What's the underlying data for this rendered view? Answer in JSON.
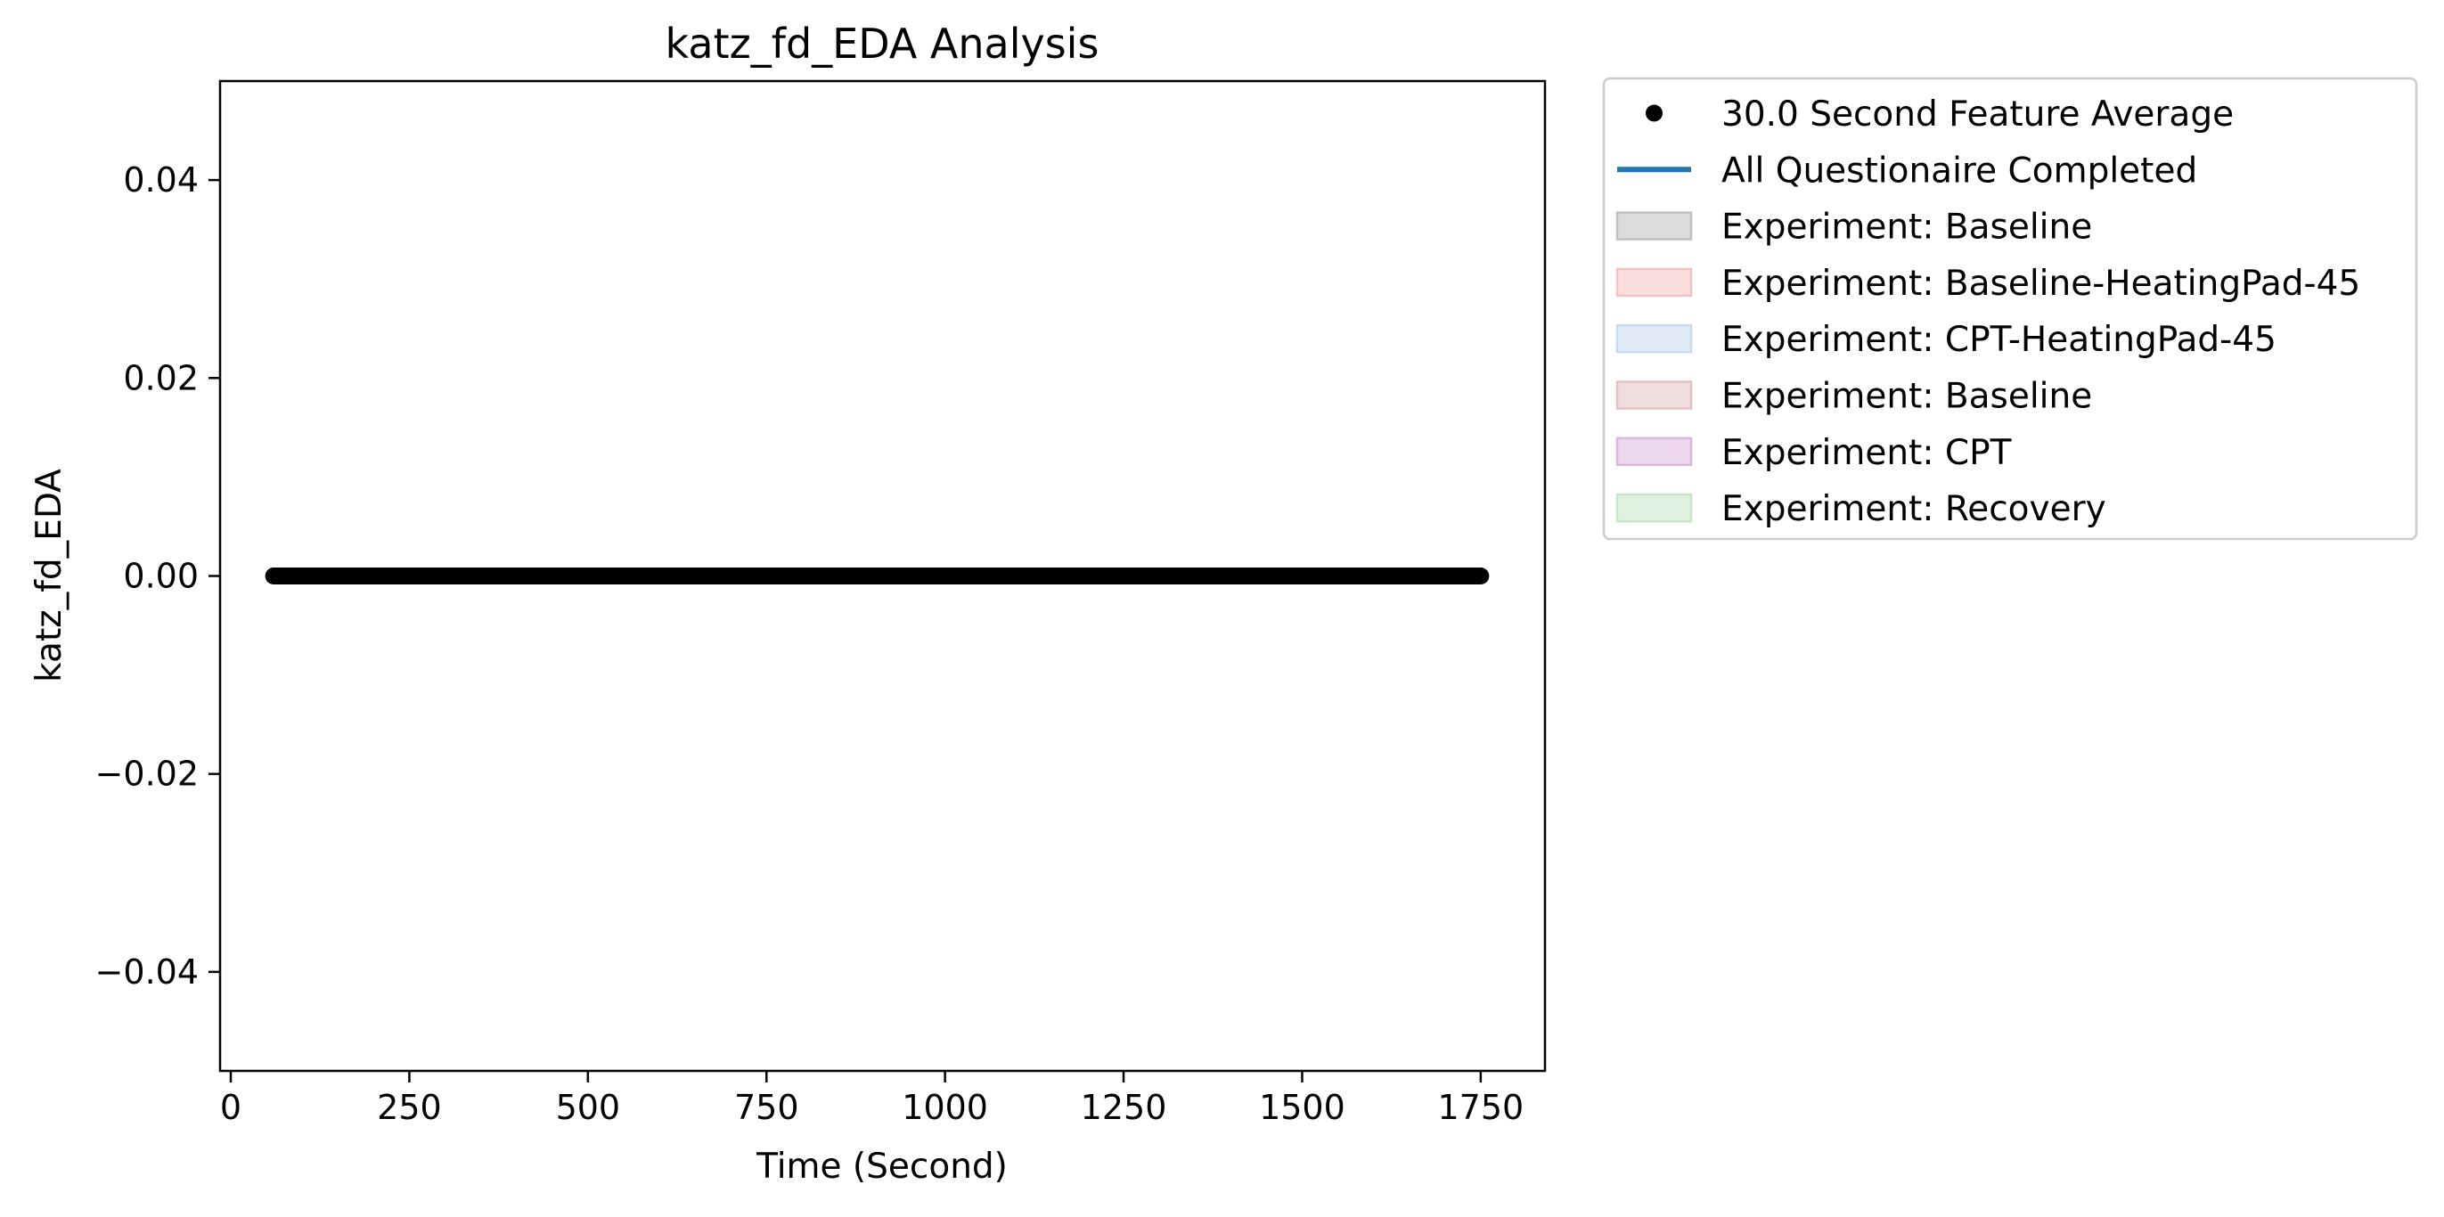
{
  "chart_data": {
    "type": "scatter",
    "title": "katz_fd_EDA Analysis",
    "xlabel": "Time (Second)",
    "ylabel": "katz_fd_EDA",
    "xlim": [
      -15,
      1840
    ],
    "ylim": [
      -0.05,
      0.05
    ],
    "x_ticks": [
      0,
      250,
      500,
      750,
      1000,
      1250,
      1500,
      1750
    ],
    "x_tick_labels": [
      "0",
      "250",
      "500",
      "750",
      "1000",
      "1250",
      "1500",
      "1750"
    ],
    "y_ticks": [
      0.04,
      0.02,
      0.0,
      -0.02,
      -0.04
    ],
    "y_tick_labels": [
      "0.04",
      "0.02",
      "0.00",
      "−0.02",
      "−0.04"
    ],
    "grid": false,
    "legend_position": "outside-right",
    "series": [
      {
        "name": "30.0 Second Feature Average",
        "kind": "points",
        "color": "#000000",
        "x_start": 60,
        "x_end": 1750,
        "x_step": 1,
        "y": 0.0
      }
    ],
    "legend": [
      {
        "label": "30.0 Second Feature Average",
        "kind": "marker",
        "color": "#000000"
      },
      {
        "label": "All Questionaire Completed",
        "kind": "line",
        "color": "#1f77b4"
      },
      {
        "label": "Experiment: Baseline",
        "kind": "patch",
        "color": "#bfbfbf"
      },
      {
        "label": "Experiment: Baseline-HeatingPad-45",
        "kind": "patch",
        "color": "#f4c2c2"
      },
      {
        "label": "Experiment: CPT-HeatingPad-45",
        "kind": "patch",
        "color": "#c6dbef"
      },
      {
        "label": "Experiment: Baseline",
        "kind": "patch",
        "color": "#e3c1c3"
      },
      {
        "label": "Experiment: CPT",
        "kind": "patch",
        "color": "#dcb6dc"
      },
      {
        "label": "Experiment: Recovery",
        "kind": "patch",
        "color": "#c7e6c7"
      }
    ]
  }
}
